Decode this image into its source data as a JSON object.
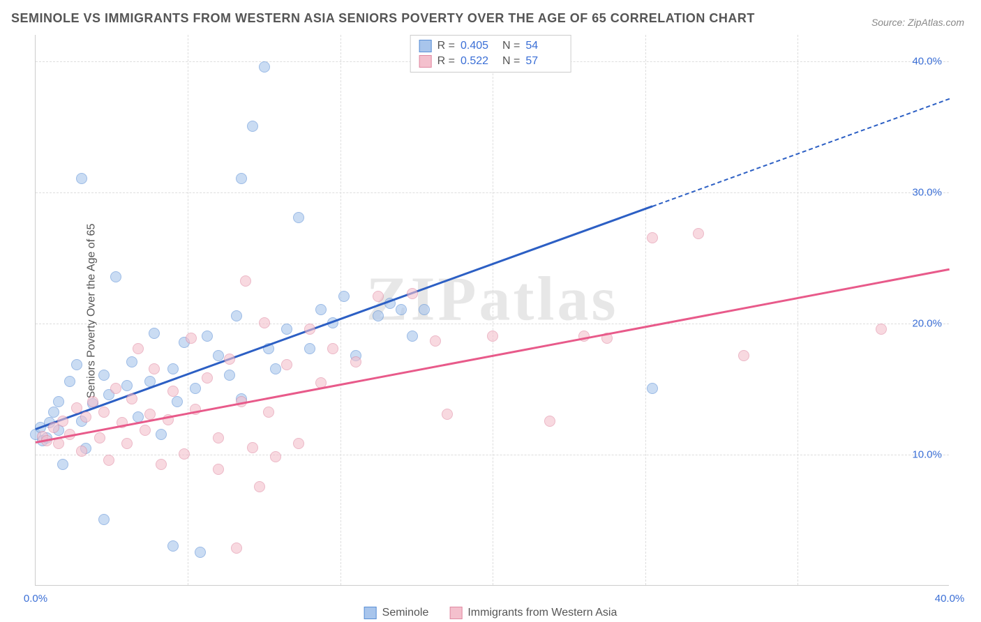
{
  "title": "SEMINOLE VS IMMIGRANTS FROM WESTERN ASIA SENIORS POVERTY OVER THE AGE OF 65 CORRELATION CHART",
  "source": "Source: ZipAtlas.com",
  "ylabel": "Seniors Poverty Over the Age of 65",
  "watermark": "ZIPatlas",
  "chart": {
    "type": "scatter",
    "xlim": [
      0,
      40
    ],
    "ylim": [
      0,
      42
    ],
    "xticks": [
      {
        "v": 0,
        "l": "0.0%"
      },
      {
        "v": 40,
        "l": "40.0%"
      }
    ],
    "yticks": [
      {
        "v": 10,
        "l": "10.0%"
      },
      {
        "v": 20,
        "l": "20.0%"
      },
      {
        "v": 30,
        "l": "30.0%"
      },
      {
        "v": 40,
        "l": "40.0%"
      }
    ],
    "xgrid_step": 6.67,
    "ygrid_step": 10,
    "background_color": "#ffffff",
    "grid_color": "#dddddd",
    "tick_color": "#3b6fd6",
    "marker_radius": 8,
    "marker_opacity": 0.6,
    "line_width": 3
  },
  "series": [
    {
      "name": "Seminole",
      "color_fill": "#a8c5ec",
      "color_stroke": "#5a8fd6",
      "color_line": "#2c5fc4",
      "stats": {
        "R": "0.405",
        "N": "54"
      },
      "trend": {
        "x1": 0,
        "y1": 12.0,
        "x2": 27,
        "y2": 29.0,
        "dash_to_x": 40,
        "dash_to_y": 37.2
      },
      "points": [
        [
          0,
          11.5
        ],
        [
          0.2,
          12
        ],
        [
          0.3,
          11
        ],
        [
          0.5,
          11.2
        ],
        [
          0.6,
          12.4
        ],
        [
          0.8,
          13.2
        ],
        [
          1,
          11.8
        ],
        [
          1,
          14
        ],
        [
          1.2,
          9.2
        ],
        [
          1.5,
          15.5
        ],
        [
          1.8,
          16.8
        ],
        [
          2,
          12.5
        ],
        [
          2,
          31
        ],
        [
          2.2,
          10.4
        ],
        [
          2.5,
          13.8
        ],
        [
          3,
          16
        ],
        [
          3,
          5
        ],
        [
          3.2,
          14.5
        ],
        [
          3.5,
          23.5
        ],
        [
          4,
          15.2
        ],
        [
          4.2,
          17
        ],
        [
          4.5,
          12.8
        ],
        [
          5,
          15.5
        ],
        [
          5.2,
          19.2
        ],
        [
          5.5,
          11.5
        ],
        [
          6,
          16.5
        ],
        [
          6,
          3
        ],
        [
          6.2,
          14
        ],
        [
          6.5,
          18.5
        ],
        [
          7,
          15
        ],
        [
          7.2,
          2.5
        ],
        [
          7.5,
          19
        ],
        [
          8,
          17.5
        ],
        [
          8.5,
          16
        ],
        [
          8.8,
          20.5
        ],
        [
          9,
          14.2
        ],
        [
          9,
          31
        ],
        [
          9.5,
          35
        ],
        [
          10,
          39.5
        ],
        [
          10.2,
          18
        ],
        [
          10.5,
          16.5
        ],
        [
          11,
          19.5
        ],
        [
          11.5,
          28
        ],
        [
          12,
          18
        ],
        [
          12.5,
          21
        ],
        [
          13,
          20
        ],
        [
          13.5,
          22
        ],
        [
          14,
          17.5
        ],
        [
          15,
          20.5
        ],
        [
          15.5,
          21.5
        ],
        [
          16,
          21
        ],
        [
          16.5,
          19
        ],
        [
          17,
          21
        ],
        [
          27,
          15
        ]
      ]
    },
    {
      "name": "Immigrants from Western Asia",
      "color_fill": "#f4c0cd",
      "color_stroke": "#e08aa2",
      "color_line": "#e85a8a",
      "stats": {
        "R": "0.522",
        "N": "57"
      },
      "trend": {
        "x1": 0,
        "y1": 11.0,
        "x2": 40,
        "y2": 24.2
      },
      "points": [
        [
          0.3,
          11.3
        ],
        [
          0.5,
          11
        ],
        [
          0.8,
          12
        ],
        [
          1,
          10.8
        ],
        [
          1.2,
          12.5
        ],
        [
          1.5,
          11.5
        ],
        [
          1.8,
          13.5
        ],
        [
          2,
          10.2
        ],
        [
          2.2,
          12.8
        ],
        [
          2.5,
          14
        ],
        [
          2.8,
          11.2
        ],
        [
          3,
          13.2
        ],
        [
          3.2,
          9.5
        ],
        [
          3.5,
          15
        ],
        [
          3.8,
          12.4
        ],
        [
          4,
          10.8
        ],
        [
          4.2,
          14.2
        ],
        [
          4.5,
          18
        ],
        [
          4.8,
          11.8
        ],
        [
          5,
          13
        ],
        [
          5.2,
          16.5
        ],
        [
          5.5,
          9.2
        ],
        [
          5.8,
          12.6
        ],
        [
          6,
          14.8
        ],
        [
          6.5,
          10
        ],
        [
          6.8,
          18.8
        ],
        [
          7,
          13.4
        ],
        [
          7.5,
          15.8
        ],
        [
          8,
          11.2
        ],
        [
          8,
          8.8
        ],
        [
          8.5,
          17.2
        ],
        [
          8.8,
          2.8
        ],
        [
          9,
          14
        ],
        [
          9.2,
          23.2
        ],
        [
          9.5,
          10.5
        ],
        [
          9.8,
          7.5
        ],
        [
          10,
          20
        ],
        [
          10.2,
          13.2
        ],
        [
          10.5,
          9.8
        ],
        [
          11,
          16.8
        ],
        [
          11.5,
          10.8
        ],
        [
          12,
          19.5
        ],
        [
          12.5,
          15.4
        ],
        [
          13,
          18
        ],
        [
          14,
          17
        ],
        [
          15,
          22
        ],
        [
          16.5,
          22.2
        ],
        [
          17.5,
          18.6
        ],
        [
          18,
          13
        ],
        [
          20,
          19
        ],
        [
          22.5,
          12.5
        ],
        [
          24,
          19
        ],
        [
          25,
          18.8
        ],
        [
          27,
          26.5
        ],
        [
          29,
          26.8
        ],
        [
          31,
          17.5
        ],
        [
          37,
          19.5
        ]
      ]
    }
  ],
  "legend": {
    "r_label": "R =",
    "n_label": "N ="
  }
}
